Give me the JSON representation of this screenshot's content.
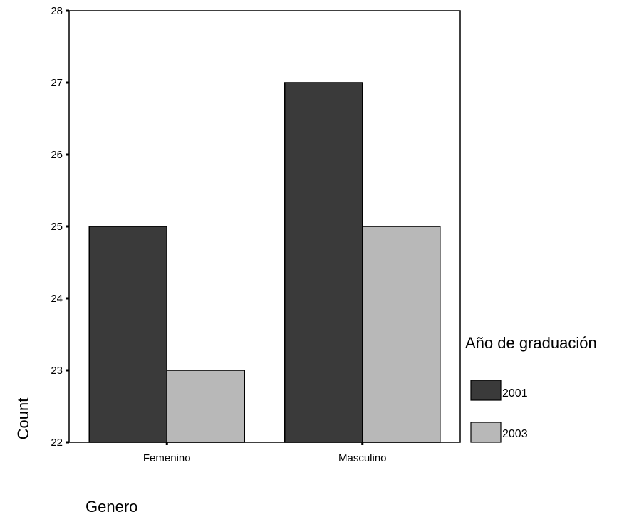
{
  "chart_data": {
    "type": "bar",
    "categories": [
      "Femenino",
      "Masculino"
    ],
    "series": [
      {
        "name": "2001",
        "values": [
          25,
          27
        ],
        "color": "#3a3a3a"
      },
      {
        "name": "2003",
        "values": [
          23,
          25
        ],
        "color": "#b8b8b8"
      }
    ],
    "ylim": [
      22,
      28
    ],
    "yticks": [
      "22",
      "23",
      "24",
      "25",
      "26",
      "27",
      "28"
    ],
    "xlabel": "Genero",
    "ylabel": "Count",
    "legend_title": "Año de graduación",
    "legend_position": "right",
    "grid": false
  }
}
